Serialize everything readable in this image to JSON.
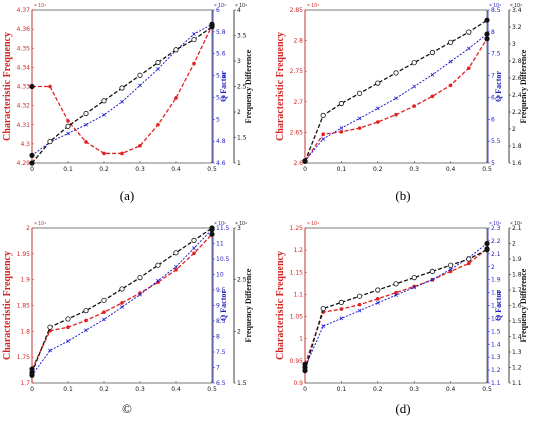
{
  "chart_data": [
    {
      "type": "line",
      "caption": "(a)",
      "x": [
        0,
        0.05,
        0.1,
        0.15,
        0.2,
        0.25,
        0.3,
        0.35,
        0.4,
        0.45,
        0.5
      ],
      "y_left": {
        "label": "Characteristic Frequency",
        "exponent": "× 10⁴",
        "ylim": [
          4.29,
          4.37
        ],
        "ticks": [
          "4.29",
          "4.3",
          "4.31",
          "4.32",
          "4.33",
          "4.34",
          "4.35",
          "4.36",
          "4.37"
        ]
      },
      "y_mid": {
        "label": "Q Factor",
        "exponent": "× 10⁴",
        "ylim": [
          4.6,
          6.0
        ],
        "ticks": [
          "4.6",
          "4.8",
          "5",
          "5.2",
          "5.4",
          "5.6",
          "5.8",
          "6"
        ]
      },
      "y_right": {
        "label": "Frequency Difference",
        "exponent": "× 10⁴",
        "ylim": [
          1,
          4
        ],
        "ticks": [
          "1",
          "1.5",
          "2",
          "2.5",
          "3",
          "3.5",
          "4"
        ]
      },
      "x_ticks": [
        "0",
        "0.1",
        "0.2",
        "0.3",
        "0.4",
        "0.5"
      ],
      "xlim": [
        0,
        0.5
      ],
      "series": [
        {
          "axis": "left",
          "color": "#e02020",
          "marker": "*",
          "dash": "4,2",
          "values": [
            4.33,
            4.33,
            4.312,
            4.301,
            4.295,
            4.295,
            4.299,
            4.31,
            4.324,
            4.342,
            4.362
          ]
        },
        {
          "axis": "mid",
          "color": "#2020d0",
          "marker": "x",
          "dash": "2,1.5",
          "values": [
            4.67,
            4.79,
            4.87,
            4.95,
            5.04,
            5.16,
            5.31,
            5.46,
            5.63,
            5.78,
            5.87
          ]
        },
        {
          "axis": "right",
          "color": "#111111",
          "marker": "o",
          "dash": "4,2",
          "values": [
            1.0,
            1.42,
            1.72,
            1.97,
            2.22,
            2.47,
            2.72,
            2.97,
            3.22,
            3.42,
            3.67
          ]
        }
      ]
    },
    {
      "type": "line",
      "caption": "(b)",
      "x": [
        0,
        0.05,
        0.1,
        0.15,
        0.2,
        0.25,
        0.3,
        0.35,
        0.4,
        0.45,
        0.5
      ],
      "y_left": {
        "label": "Characteristic Frequency",
        "exponent": "× 10⁴",
        "ylim": [
          2.6,
          2.85
        ],
        "ticks": [
          "2.6",
          "2.65",
          "2.7",
          "2.75",
          "2.8",
          "2.85"
        ]
      },
      "y_mid": {
        "label": "Q Factor",
        "exponent": "× 10⁴",
        "ylim": [
          5,
          8.5
        ],
        "ticks": [
          "5",
          "5.5",
          "6",
          "6.5",
          "7",
          "7.5",
          "8",
          "8.5"
        ]
      },
      "y_right": {
        "label": "Frequency Difference",
        "exponent": "× 10⁴",
        "ylim": [
          1.6,
          3.4
        ],
        "ticks": [
          "1.6",
          "1.8",
          "2",
          "2.2",
          "2.4",
          "2.6",
          "2.8",
          "3",
          "3.2",
          "3.4"
        ]
      },
      "x_ticks": [
        "0",
        "0.1",
        "0.2",
        "0.3",
        "0.4",
        "0.5"
      ],
      "xlim": [
        0,
        0.5
      ],
      "series": [
        {
          "axis": "left",
          "color": "#e02020",
          "marker": "*",
          "dash": "4,2",
          "values": [
            2.603,
            2.647,
            2.651,
            2.657,
            2.667,
            2.679,
            2.693,
            2.709,
            2.727,
            2.755,
            2.803
          ]
        },
        {
          "axis": "mid",
          "color": "#2020d0",
          "marker": "x",
          "dash": "2,1.5",
          "values": [
            5.05,
            5.55,
            5.8,
            6.02,
            6.25,
            6.48,
            6.75,
            7.02,
            7.32,
            7.62,
            7.95
          ]
        },
        {
          "axis": "right",
          "color": "#111111",
          "marker": "o",
          "dash": "4,2",
          "values": [
            1.62,
            2.16,
            2.3,
            2.42,
            2.54,
            2.66,
            2.78,
            2.9,
            3.02,
            3.14,
            3.28
          ]
        }
      ]
    },
    {
      "type": "line",
      "caption": "©",
      "x": [
        0,
        0.05,
        0.1,
        0.15,
        0.2,
        0.25,
        0.3,
        0.35,
        0.4,
        0.45,
        0.5
      ],
      "y_left": {
        "label": "Characteristic Frequency",
        "exponent": "× 10⁴",
        "ylim": [
          1.7,
          2.0
        ],
        "ticks": [
          "1.7",
          "1.75",
          "1.8",
          "1.85",
          "1.9",
          "1.95",
          "2"
        ]
      },
      "y_mid": {
        "label": "Q Factor",
        "exponent": "× 10⁴",
        "ylim": [
          6.5,
          11.5
        ],
        "ticks": [
          "6.5",
          "7",
          "7.5",
          "8",
          "8.5",
          "9",
          "9.5",
          "10",
          "10.5",
          "11",
          "11.5"
        ]
      },
      "y_right": {
        "label": "Frequency Difference",
        "exponent": "× 10⁴",
        "ylim": [
          1.5,
          3
        ],
        "ticks": [
          "1.5",
          "2",
          "2.5",
          "3"
        ]
      },
      "x_ticks": [
        "0",
        "0.1",
        "0.2",
        "0.3",
        "0.4",
        "0.5"
      ],
      "xlim": [
        0,
        0.5
      ],
      "series": [
        {
          "axis": "left",
          "color": "#e02020",
          "marker": "*",
          "dash": "4,2",
          "values": [
            1.727,
            1.801,
            1.808,
            1.821,
            1.837,
            1.855,
            1.874,
            1.895,
            1.919,
            1.951,
            1.988
          ]
        },
        {
          "axis": "mid",
          "color": "#2020d0",
          "marker": "x",
          "dash": "2,1.5",
          "values": [
            6.75,
            7.55,
            7.85,
            8.2,
            8.55,
            8.95,
            9.35,
            9.8,
            10.25,
            10.85,
            11.45
          ]
        },
        {
          "axis": "right",
          "color": "#111111",
          "marker": "o",
          "dash": "4,2",
          "values": [
            1.6,
            2.04,
            2.12,
            2.2,
            2.3,
            2.41,
            2.52,
            2.64,
            2.76,
            2.88,
            3.0
          ]
        }
      ]
    },
    {
      "type": "line",
      "caption": "(d)",
      "x": [
        0,
        0.05,
        0.1,
        0.15,
        0.2,
        0.25,
        0.3,
        0.35,
        0.4,
        0.45,
        0.5
      ],
      "y_left": {
        "label": "Characteristic Frequency",
        "exponent": "× 10⁴",
        "ylim": [
          0.9,
          1.25
        ],
        "ticks": [
          "0.9",
          "0.95",
          "1",
          "1.05",
          "1.1",
          "1.15",
          "1.2",
          "1.25"
        ]
      },
      "y_mid": {
        "label": "Q Factor",
        "exponent": "× 10⁴",
        "ylim": [
          1.1,
          2.3
        ],
        "ticks": [
          "1.1",
          "1.2",
          "1.3",
          "1.4",
          "1.5",
          "1.6",
          "1.7",
          "1.8",
          "1.9",
          "2",
          "2.1",
          "2.2",
          "2.3"
        ]
      },
      "y_right": {
        "label": "Frequency Difference",
        "exponent": "× 10⁴",
        "ylim": [
          1.1,
          2.1
        ],
        "ticks": [
          "1.1",
          "1.2",
          "1.3",
          "1.4",
          "1.5",
          "1.6",
          "1.7",
          "1.8",
          "1.9",
          "2",
          "2.1"
        ]
      },
      "x_ticks": [
        "0",
        "0.1",
        "0.2",
        "0.3",
        "0.4",
        "0.5"
      ],
      "xlim": [
        0,
        0.5
      ],
      "series": [
        {
          "axis": "left",
          "color": "#e02020",
          "marker": "*",
          "dash": "4,2",
          "values": [
            0.942,
            1.06,
            1.067,
            1.077,
            1.09,
            1.104,
            1.118,
            1.133,
            1.152,
            1.17,
            1.203
          ]
        },
        {
          "axis": "mid",
          "color": "#2020d0",
          "marker": "x",
          "dash": "2,1.5",
          "values": [
            1.22,
            1.54,
            1.6,
            1.66,
            1.72,
            1.78,
            1.84,
            1.9,
            1.98,
            2.07,
            2.18
          ]
        },
        {
          "axis": "right",
          "color": "#111111",
          "marker": "o",
          "dash": "4,2",
          "values": [
            1.18,
            1.58,
            1.62,
            1.66,
            1.7,
            1.74,
            1.78,
            1.82,
            1.86,
            1.9,
            1.96
          ]
        }
      ]
    }
  ]
}
